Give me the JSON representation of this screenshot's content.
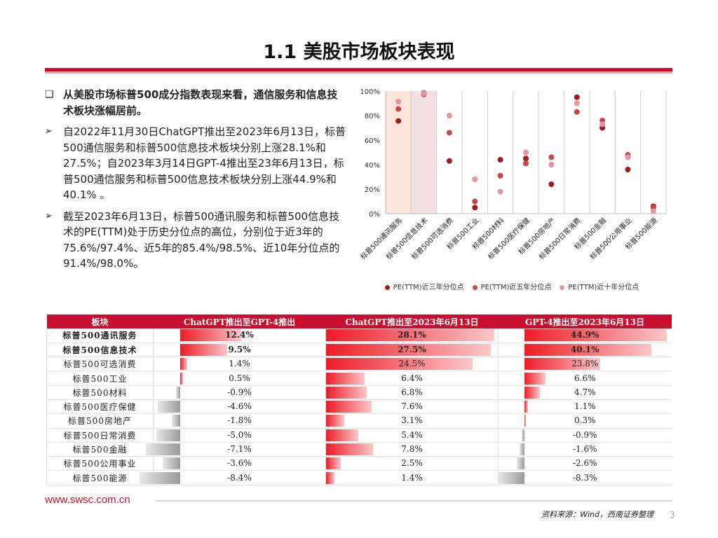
{
  "title": "1.1 美股市场板块表现",
  "bullets": [
    {
      "mark": "❑",
      "text": "从美股市场标普500成分指数表现来看，通信服务和信息技术板块涨幅居前。"
    },
    {
      "mark": "➢",
      "text": "自2022年11月30日ChatGPT推出至2023年6月13日，标普500通信服务和标普500信息技术板块分别上涨28.1%和27.5%；自2023年3月14日GPT-4推出至23年6月13日，标普500通信服务和标普500信息技术板块分别上涨44.9%和40.1% 。"
    },
    {
      "mark": "➢",
      "text": "截至2023年6月13日，标普500通讯服务和标普500信息技术的PE(TTM)处于历史分位点的高位，分别位于近3年的75.6%/97.4%、近5年的85.4%/98.5%、近10年分位点的91.4%/98.0%。"
    }
  ],
  "chart_data": {
    "type": "scatter",
    "categories": [
      "标普500通讯服务",
      "标普500信息技术",
      "标普500可选消费",
      "标普500工业",
      "标普500材料",
      "标普500医疗保健",
      "标普500房地产",
      "标普500日常消费",
      "标普500金融",
      "标普500公用事业",
      "标普500能源"
    ],
    "series": [
      {
        "name": "PE(TTM)近三年分位点",
        "color": "#9e1b24",
        "values": [
          75.6,
          97.4,
          43,
          5,
          44,
          45,
          24,
          95,
          70,
          36,
          6
        ]
      },
      {
        "name": "PE(TTM)近五年分位点",
        "color": "#c7464d",
        "values": [
          85.4,
          98.5,
          66,
          10,
          31,
          41,
          46,
          83,
          76,
          48,
          5
        ]
      },
      {
        "name": "PE(TTM)近十年分位点",
        "color": "#e0979b",
        "values": [
          91.4,
          98.0,
          80,
          28,
          18,
          50,
          40,
          90,
          73,
          46,
          2
        ]
      }
    ],
    "yticks": [
      "0%",
      "20%",
      "40%",
      "60%",
      "80%",
      "100%"
    ],
    "ylim": [
      0,
      100
    ],
    "highlight_categories": [
      0,
      1
    ],
    "legend_position": "bottom"
  },
  "table": {
    "headers": [
      "板块",
      "ChatGPT推出至GPT-4推出",
      "ChatGPT推出至2023年6月13日",
      "GPT-4推出至2023年6月13日"
    ],
    "rows": [
      {
        "name": "标普500通讯服务",
        "strong": true,
        "values": [
          "12.4%",
          "28.1%",
          "44.9%"
        ],
        "nums": [
          12.4,
          28.1,
          44.9
        ]
      },
      {
        "name": "标普500信息技术",
        "strong": true,
        "values": [
          "9.5%",
          "27.5%",
          "40.1%"
        ],
        "nums": [
          9.5,
          27.5,
          40.1
        ]
      },
      {
        "name": "标普500可选消费",
        "strong": false,
        "values": [
          "1.4%",
          "24.5%",
          "23.8%"
        ],
        "nums": [
          1.4,
          24.5,
          23.8
        ]
      },
      {
        "name": "标普500工业",
        "strong": false,
        "values": [
          "0.5%",
          "6.4%",
          "6.6%"
        ],
        "nums": [
          0.5,
          6.4,
          6.6
        ]
      },
      {
        "name": "标普500材料",
        "strong": false,
        "values": [
          "-0.9%",
          "6.8%",
          "4.7%"
        ],
        "nums": [
          -0.9,
          6.8,
          4.7
        ]
      },
      {
        "name": "标普500医疗保健",
        "strong": false,
        "values": [
          "-4.6%",
          "7.6%",
          "1.1%"
        ],
        "nums": [
          -4.6,
          7.6,
          1.1
        ]
      },
      {
        "name": "标普500房地产",
        "strong": false,
        "values": [
          "-1.8%",
          "3.1%",
          "0.3%"
        ],
        "nums": [
          -1.8,
          3.1,
          0.3
        ]
      },
      {
        "name": "标普500日常消费",
        "strong": false,
        "values": [
          "-5.0%",
          "5.4%",
          "-0.9%"
        ],
        "nums": [
          -5.0,
          5.4,
          -0.9
        ]
      },
      {
        "name": "标普500金融",
        "strong": false,
        "values": [
          "-7.1%",
          "7.8%",
          "-1.6%"
        ],
        "nums": [
          -7.1,
          7.8,
          -1.6
        ]
      },
      {
        "name": "标普500公用事业",
        "strong": false,
        "values": [
          "-3.6%",
          "2.5%",
          "-2.6%"
        ],
        "nums": [
          -3.6,
          2.5,
          -2.6
        ]
      },
      {
        "name": "标普500能源",
        "strong": false,
        "values": [
          "-8.4%",
          "1.4%",
          "-8.3%"
        ],
        "nums": [
          -8.4,
          1.4,
          -8.3
        ]
      }
    ],
    "positive_color": "#ee1c25",
    "negative_color": "#9a9a9a"
  },
  "footer": {
    "url": "www.swsc.com.cn",
    "source": "资料来源：Wind，西南证券整理",
    "page": "3"
  }
}
